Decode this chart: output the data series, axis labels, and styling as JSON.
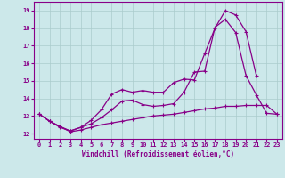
{
  "title": "",
  "xlabel": "Windchill (Refroidissement éolien,°C)",
  "ylabel": "",
  "background_color": "#cce8ea",
  "grid_color": "#aacccc",
  "line_color": "#880088",
  "xlim": [
    -0.5,
    23.5
  ],
  "ylim": [
    11.7,
    19.5
  ],
  "xticks": [
    0,
    1,
    2,
    3,
    4,
    5,
    6,
    7,
    8,
    9,
    10,
    11,
    12,
    13,
    14,
    15,
    16,
    17,
    18,
    19,
    20,
    21,
    22,
    23
  ],
  "yticks": [
    12,
    13,
    14,
    15,
    16,
    17,
    18,
    19
  ],
  "series": [
    {
      "x": [
        0,
        1,
        2,
        3,
        4,
        5,
        6,
        7,
        8,
        9,
        10,
        11,
        12,
        13,
        14,
        15,
        16,
        17,
        18,
        19,
        20,
        21,
        22,
        23
      ],
      "y": [
        13.1,
        12.7,
        12.4,
        12.1,
        12.2,
        12.35,
        12.5,
        12.6,
        12.7,
        12.8,
        12.9,
        13.0,
        13.05,
        13.1,
        13.2,
        13.3,
        13.4,
        13.45,
        13.55,
        13.55,
        13.6,
        13.6,
        13.6,
        13.1
      ]
    },
    {
      "x": [
        0,
        1,
        2,
        3,
        4,
        5,
        6,
        7,
        8,
        9,
        10,
        11,
        12,
        13,
        14,
        15,
        16,
        17,
        18,
        19,
        20,
        21,
        22,
        23
      ],
      "y": [
        13.1,
        12.7,
        12.4,
        12.15,
        12.35,
        12.55,
        12.9,
        13.35,
        13.85,
        13.9,
        13.65,
        13.55,
        13.6,
        13.7,
        14.35,
        15.5,
        15.55,
        18.05,
        18.5,
        17.75,
        15.3,
        14.2,
        13.15,
        13.1
      ]
    },
    {
      "x": [
        0,
        1,
        2,
        3,
        4,
        5,
        6,
        7,
        8,
        9,
        10,
        11,
        12,
        13,
        14,
        15,
        16,
        17,
        18,
        19,
        20,
        21
      ],
      "y": [
        13.1,
        12.7,
        12.35,
        12.15,
        12.35,
        12.75,
        13.35,
        14.25,
        14.5,
        14.35,
        14.45,
        14.35,
        14.35,
        14.9,
        15.1,
        15.05,
        16.55,
        18.0,
        19.0,
        18.75,
        17.8,
        15.3
      ]
    }
  ]
}
